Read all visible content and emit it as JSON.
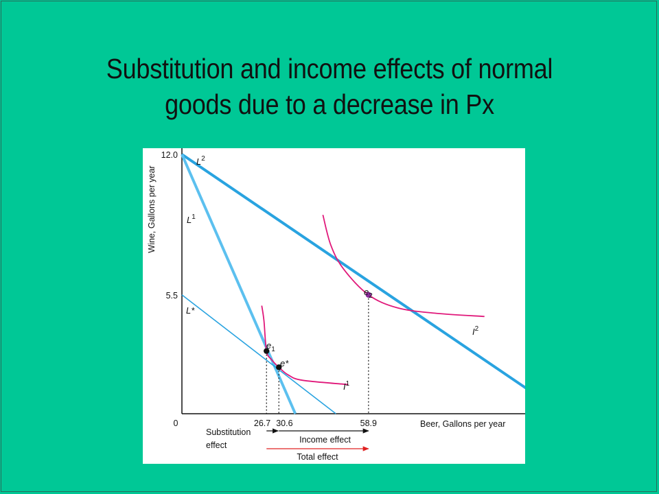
{
  "title": {
    "line1": "Substitution and income effects  of normal",
    "line2": "goods due to a decrease in Px"
  },
  "colors": {
    "background": "#00c896",
    "budget_line": "#29a3e0",
    "budget_line_light": "#5cc0ef",
    "indifference_curve": "#e0187a",
    "effect_arrow": "#111111",
    "total_effect_arrow": "#e02020",
    "point_e2": "#8a2a9a"
  },
  "chart_data": {
    "type": "line",
    "xlabel": "Beer, Gallons per year",
    "ylabel": "Wine, Gallons per year",
    "xlim": [
      0,
      128
    ],
    "ylim": [
      0,
      12.8
    ],
    "x_ticks": [
      "26.7",
      "30.6",
      "58.9"
    ],
    "y_ticks": [
      "12.0",
      "5.5"
    ],
    "origin_label": "0",
    "budget_lines": [
      {
        "name": "L",
        "sup": "2",
        "points": [
          [
            0,
            12.0
          ],
          [
            120.5,
            0
          ]
        ]
      },
      {
        "name": "L",
        "sup": "1",
        "points": [
          [
            0,
            12.0
          ],
          [
            35.8,
            0
          ]
        ]
      },
      {
        "name": "L*",
        "sup": "",
        "points": [
          [
            0,
            5.5
          ],
          [
            48.6,
            0
          ]
        ]
      }
    ],
    "indifference_curves": [
      {
        "name": "I",
        "sup": "1",
        "points": [
          [
            25.2,
            5.0
          ],
          [
            25.9,
            4.3
          ],
          [
            26.7,
            2.9
          ],
          [
            28.3,
            2.5
          ],
          [
            30.6,
            2.15
          ],
          [
            33.5,
            1.8
          ],
          [
            38.0,
            1.55
          ],
          [
            52.5,
            1.35
          ]
        ]
      },
      {
        "name": "I",
        "sup": "2",
        "points": [
          [
            44.5,
            9.2
          ],
          [
            47.0,
            7.8
          ],
          [
            51.0,
            6.7
          ],
          [
            58.9,
            5.5
          ],
          [
            68.0,
            4.9
          ],
          [
            80.0,
            4.65
          ],
          [
            95.5,
            4.5
          ]
        ]
      }
    ],
    "equilibria": [
      {
        "name": "e",
        "sub": "1",
        "x": 26.7,
        "y": 2.9
      },
      {
        "name": "e*",
        "sub": "",
        "x": 30.6,
        "y": 2.15
      },
      {
        "name": "e",
        "sub": "2",
        "x": 58.9,
        "y": 5.5
      }
    ],
    "effects": [
      {
        "label": "Substitution",
        "label2": "effect",
        "from": 26.7,
        "to": 30.6
      },
      {
        "label": "Income effect",
        "from": 30.6,
        "to": 58.9
      },
      {
        "label": "Total effect",
        "from": 26.7,
        "to": 58.9
      }
    ]
  }
}
